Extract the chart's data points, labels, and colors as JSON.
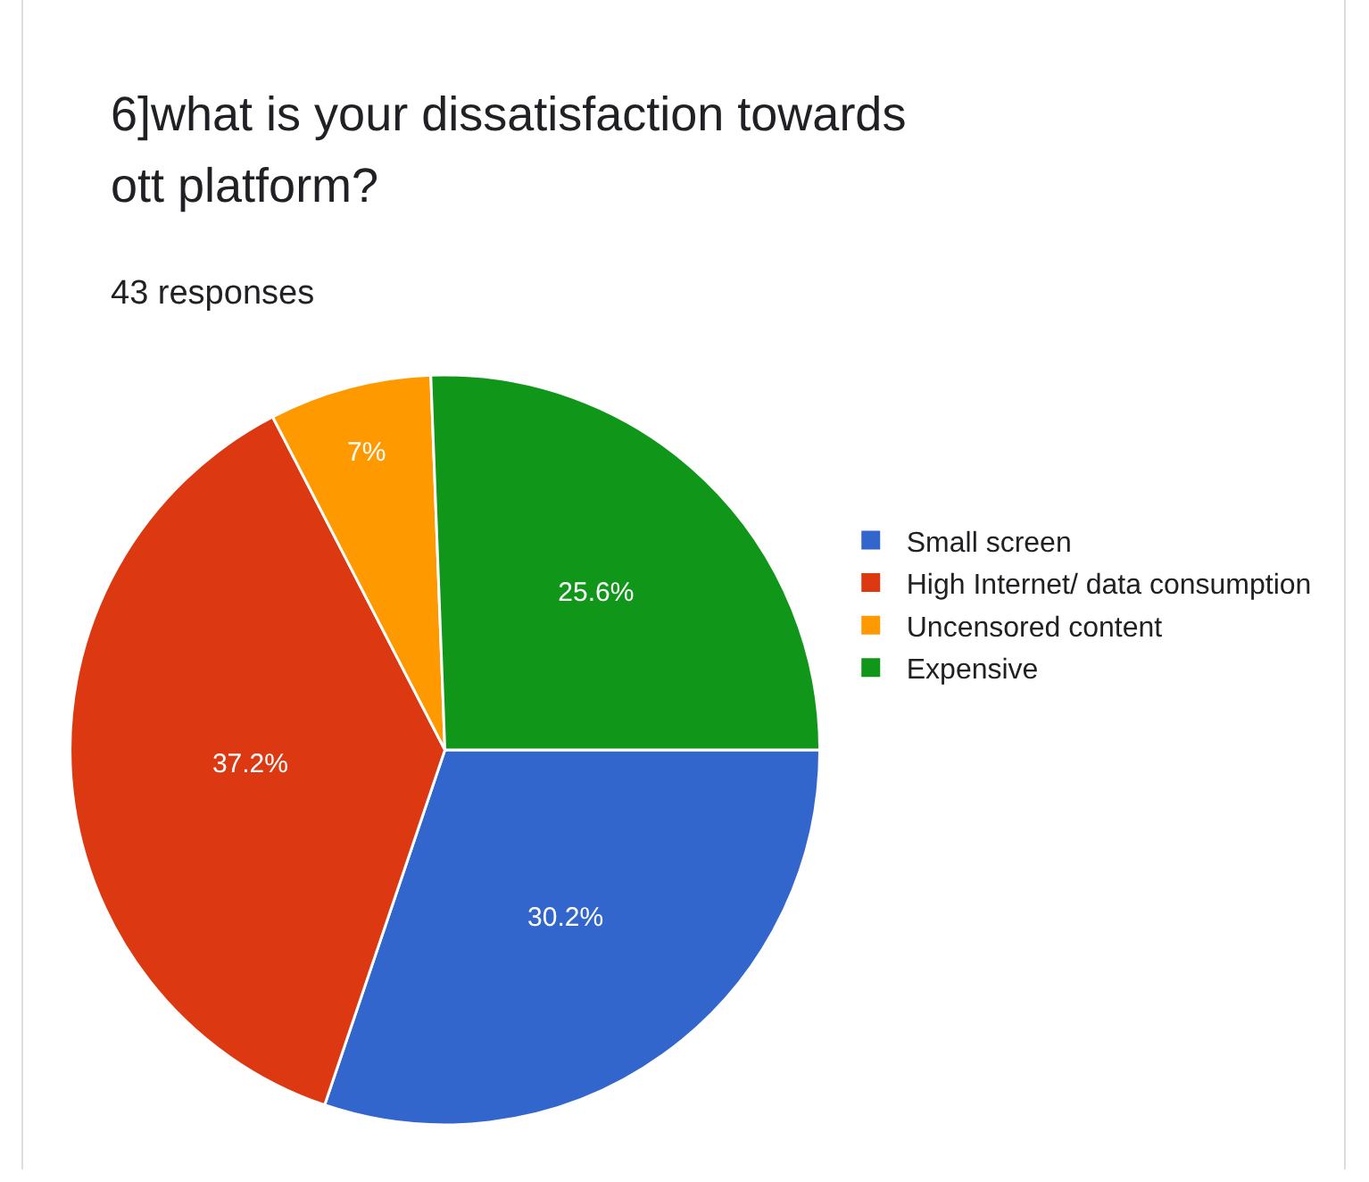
{
  "chart_data": {
    "type": "pie",
    "title": "6]what is your dissatisfaction towards ott platform?",
    "subtitle": "43 responses",
    "categories": [
      "Small screen",
      "High Internet/ data consumption",
      "Uncensored content",
      "Expensive"
    ],
    "values": [
      30.2,
      37.2,
      7,
      25.6
    ],
    "colors": [
      "#3366cc",
      "#dc3912",
      "#ff9900",
      "#109618"
    ],
    "value_labels": [
      "30.2%",
      "37.2%",
      "7%",
      "25.6%"
    ],
    "legend": "right"
  }
}
